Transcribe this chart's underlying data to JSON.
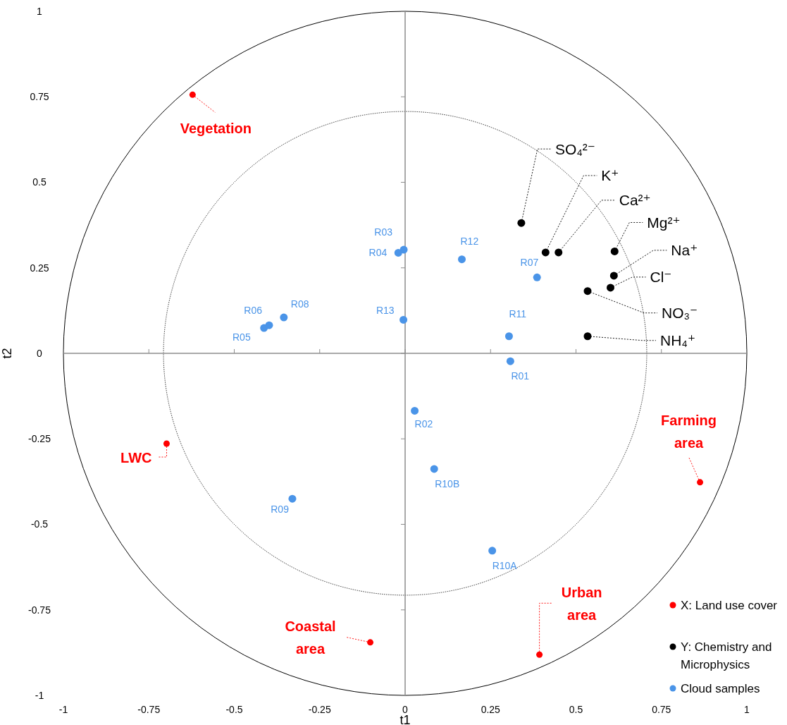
{
  "chart_data": {
    "type": "scatter",
    "xlabel": "t1",
    "ylabel": "t2",
    "xlim": [
      -1,
      1
    ],
    "ylim": [
      -1,
      1
    ],
    "xticks": [
      -1,
      -0.75,
      -0.5,
      -0.25,
      0,
      0.25,
      0.5,
      0.75,
      1
    ],
    "yticks": [
      -1,
      -0.75,
      -0.5,
      -0.25,
      0,
      0.25,
      0.5,
      0.75,
      1
    ],
    "marker": "circle",
    "legend": "bottom right",
    "series": [
      {
        "name": "X: Land use cover",
        "color": "#ff0000",
        "x": [
          -0.622,
          -0.698,
          0.863,
          0.393,
          -0.102
        ],
        "values": [
          0.756,
          -0.264,
          -0.377,
          -0.881,
          -0.845
        ],
        "value_labels": [
          "Vegetation",
          "LWC",
          "Farming area",
          "Urban area",
          "Coastal area"
        ]
      },
      {
        "name": "Y: Chemistry and Microphysics",
        "color": "#000000",
        "x": [
          0.34,
          0.411,
          0.449,
          0.613,
          0.611,
          0.601,
          0.534,
          0.534
        ],
        "values": [
          0.381,
          0.295,
          0.295,
          0.298,
          0.227,
          0.192,
          0.182,
          0.05
        ],
        "value_labels": [
          "SO₄²⁻",
          "K⁺",
          "Ca²⁺",
          "Mg²⁺",
          "Na⁺",
          "Cl⁻",
          "NO₃⁻",
          "NH₄⁺"
        ]
      },
      {
        "name": "Cloud samples",
        "color": "#4a94e8",
        "x": [
          0.308,
          0.028,
          -0.004,
          -0.02,
          -0.413,
          -0.398,
          0.386,
          -0.355,
          -0.33,
          0.255,
          0.085,
          0.304,
          0.166,
          -0.005
        ],
        "values": [
          -0.023,
          -0.168,
          0.303,
          0.294,
          0.074,
          0.082,
          0.222,
          0.105,
          -0.425,
          -0.577,
          -0.338,
          0.05,
          0.275,
          0.098
        ],
        "value_labels": [
          "R01",
          "R02",
          "R03",
          "R04",
          "R05",
          "R06",
          "R07",
          "R08",
          "R09",
          "R10A",
          "R10B",
          "R11",
          "R12",
          "R13"
        ]
      }
    ]
  }
}
